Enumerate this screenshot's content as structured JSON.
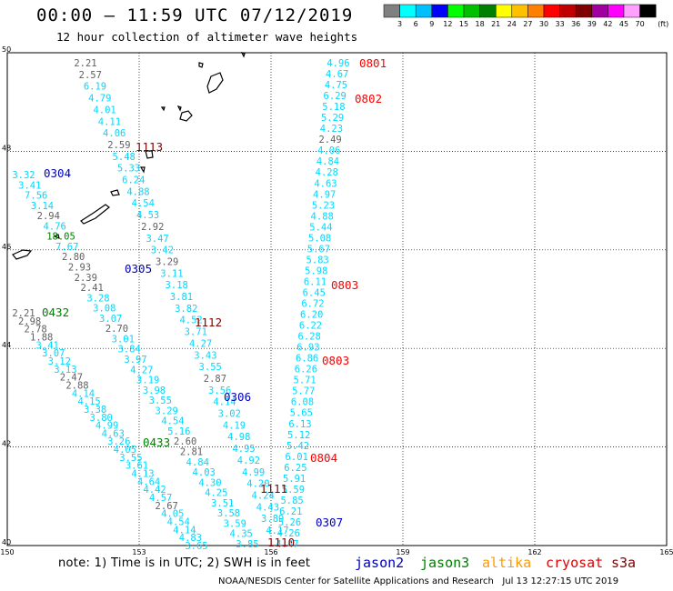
{
  "header": {
    "title": "00:00 – 11:59 UTC 07/12/2019",
    "subtitle": "12 hour collection of altimeter wave heights"
  },
  "legend": {
    "unit": "(ft)",
    "colors": [
      "#808080",
      "#00ffff",
      "#00bfff",
      "#0000ff",
      "#00ff00",
      "#00c000",
      "#008000",
      "#ffff00",
      "#ffc000",
      "#ff8000",
      "#ff0000",
      "#c00000",
      "#800000",
      "#a000a0",
      "#ff00ff",
      "#ffa0ff",
      "#000000"
    ],
    "labels": [
      "3",
      "6",
      "9",
      "12",
      "15",
      "18",
      "21",
      "24",
      "27",
      "30",
      "33",
      "36",
      "39",
      "42",
      "45",
      "70"
    ]
  },
  "axes": {
    "lon_labels": [
      "150",
      "153",
      "156",
      "159",
      "162",
      "165"
    ],
    "lat_labels": [
      "50",
      "48",
      "46",
      "44",
      "42",
      "40"
    ]
  },
  "tracks": [
    {
      "label": "0801",
      "color": "#ff0000"
    },
    {
      "label": "0802",
      "color": "#ff0000"
    },
    {
      "label": "0803",
      "color": "#ff0000"
    },
    {
      "label": "0803",
      "color": "#ff0000"
    },
    {
      "label": "0804",
      "color": "#ff0000"
    },
    {
      "label": "1113",
      "color": "#800000"
    },
    {
      "label": "1112",
      "color": "#800000"
    },
    {
      "label": "1111",
      "color": "#800000"
    },
    {
      "label": "1110",
      "color": "#800000"
    },
    {
      "label": "0304",
      "color": "#0000c0"
    },
    {
      "label": "0305",
      "color": "#0000c0"
    },
    {
      "label": "0306",
      "color": "#0000c0"
    },
    {
      "label": "0307",
      "color": "#0000c0"
    },
    {
      "label": "0432",
      "color": "#008000"
    },
    {
      "label": "0433",
      "color": "#008000"
    }
  ],
  "observations": [
    [
      "4.96",
      "c"
    ],
    [
      "4.67",
      "c"
    ],
    [
      "4.75",
      "c"
    ],
    [
      "6.29",
      "c"
    ],
    [
      "5.18",
      "c"
    ],
    [
      "5.29",
      "c"
    ],
    [
      "4.23",
      "c"
    ],
    [
      "2.49",
      "g"
    ],
    [
      "4.06",
      "c"
    ],
    [
      "4.84",
      "c"
    ],
    [
      "4.28",
      "c"
    ],
    [
      "4.63",
      "c"
    ],
    [
      "4.97",
      "c"
    ],
    [
      "5.23",
      "c"
    ],
    [
      "4.88",
      "c"
    ],
    [
      "5.44",
      "c"
    ],
    [
      "5.08",
      "c"
    ],
    [
      "5.67",
      "c"
    ],
    [
      "5.83",
      "c"
    ],
    [
      "5.98",
      "c"
    ],
    [
      "6.11",
      "c"
    ],
    [
      "6.45",
      "c"
    ],
    [
      "6.72",
      "c"
    ],
    [
      "6.20",
      "c"
    ],
    [
      "6.22",
      "c"
    ],
    [
      "6.28",
      "c"
    ],
    [
      "6.93",
      "c"
    ],
    [
      "6.86",
      "c"
    ],
    [
      "6.26",
      "c"
    ],
    [
      "5.71",
      "c"
    ],
    [
      "5.77",
      "c"
    ],
    [
      "6.08",
      "c"
    ],
    [
      "5.65",
      "c"
    ],
    [
      "6.13",
      "c"
    ],
    [
      "5.12",
      "c"
    ],
    [
      "5.42",
      "c"
    ],
    [
      "6.01",
      "c"
    ],
    [
      "6.25",
      "c"
    ],
    [
      "5.91",
      "c"
    ],
    [
      "5.59",
      "c"
    ],
    [
      "5.85",
      "c"
    ],
    [
      "6.21",
      "c"
    ],
    [
      "5.26",
      "c"
    ],
    [
      "4.26",
      "c"
    ],
    [
      "4.47",
      "c"
    ],
    [
      "2.21",
      "g"
    ],
    [
      "2.57",
      "g"
    ],
    [
      "6.19",
      "c"
    ],
    [
      "4.79",
      "c"
    ],
    [
      "4.01",
      "c"
    ],
    [
      "4.11",
      "c"
    ],
    [
      "4.06",
      "c"
    ],
    [
      "2.59",
      "g"
    ],
    [
      "5.48",
      "c"
    ],
    [
      "5.33",
      "c"
    ],
    [
      "6.24",
      "c"
    ],
    [
      "4.88",
      "c"
    ],
    [
      "4.54",
      "c"
    ],
    [
      "4.53",
      "c"
    ],
    [
      "2.92",
      "g"
    ],
    [
      "3.47",
      "c"
    ],
    [
      "3.42",
      "c"
    ],
    [
      "3.29",
      "g"
    ],
    [
      "3.11",
      "c"
    ],
    [
      "3.18",
      "c"
    ],
    [
      "3.81",
      "c"
    ],
    [
      "3.82",
      "c"
    ],
    [
      "4.52",
      "c"
    ],
    [
      "3.71",
      "c"
    ],
    [
      "4.27",
      "c"
    ],
    [
      "3.43",
      "c"
    ],
    [
      "3.55",
      "c"
    ],
    [
      "2.87",
      "g"
    ],
    [
      "3.56",
      "c"
    ],
    [
      "4.14",
      "c"
    ],
    [
      "3.02",
      "c"
    ],
    [
      "4.19",
      "c"
    ],
    [
      "4.98",
      "c"
    ],
    [
      "4.95",
      "c"
    ],
    [
      "4.92",
      "c"
    ],
    [
      "4.99",
      "c"
    ],
    [
      "4.20",
      "c"
    ],
    [
      "4.24",
      "c"
    ],
    [
      "4.43",
      "c"
    ],
    [
      "3.89",
      "c"
    ],
    [
      "4.17",
      "c"
    ],
    [
      "3.32",
      "c"
    ],
    [
      "3.41",
      "c"
    ],
    [
      "7.56",
      "c"
    ],
    [
      "3.14",
      "c"
    ],
    [
      "2.94",
      "g"
    ],
    [
      "4.76",
      "c"
    ],
    [
      "18.05",
      "dg"
    ],
    [
      "7.67",
      "c"
    ],
    [
      "2.80",
      "g"
    ],
    [
      "2.93",
      "g"
    ],
    [
      "2.39",
      "g"
    ],
    [
      "2.41",
      "g"
    ],
    [
      "3.28",
      "c"
    ],
    [
      "3.08",
      "c"
    ],
    [
      "3.07",
      "c"
    ],
    [
      "2.70",
      "g"
    ],
    [
      "3.01",
      "c"
    ],
    [
      "3.84",
      "c"
    ],
    [
      "3.97",
      "c"
    ],
    [
      "4.27",
      "c"
    ],
    [
      "3.19",
      "c"
    ],
    [
      "3.98",
      "c"
    ],
    [
      "3.55",
      "c"
    ],
    [
      "3.29",
      "c"
    ],
    [
      "4.54",
      "c"
    ],
    [
      "5.16",
      "c"
    ],
    [
      "2.60",
      "g"
    ],
    [
      "2.81",
      "g"
    ],
    [
      "4.84",
      "c"
    ],
    [
      "4.03",
      "c"
    ],
    [
      "4.30",
      "c"
    ],
    [
      "4.25",
      "c"
    ],
    [
      "3.51",
      "c"
    ],
    [
      "3.58",
      "c"
    ],
    [
      "3.59",
      "c"
    ],
    [
      "4.35",
      "c"
    ],
    [
      "3.85",
      "c"
    ],
    [
      "2.21",
      "g"
    ],
    [
      "2.98",
      "g"
    ],
    [
      "2.78",
      "g"
    ],
    [
      "1.88",
      "g"
    ],
    [
      "3.41",
      "c"
    ],
    [
      "3.07",
      "c"
    ],
    [
      "3.12",
      "c"
    ],
    [
      "3.13",
      "c"
    ],
    [
      "2.47",
      "g"
    ],
    [
      "2.88",
      "g"
    ],
    [
      "4.14",
      "c"
    ],
    [
      "4.15",
      "c"
    ],
    [
      "3.38",
      "c"
    ],
    [
      "3.80",
      "c"
    ],
    [
      "4.99",
      "c"
    ],
    [
      "4.63",
      "c"
    ],
    [
      "3.26",
      "c"
    ],
    [
      "4.05",
      "c"
    ],
    [
      "3.55",
      "c"
    ],
    [
      "3.61",
      "c"
    ],
    [
      "4.13",
      "c"
    ],
    [
      "4.64",
      "c"
    ],
    [
      "4.42",
      "c"
    ],
    [
      "4.57",
      "c"
    ],
    [
      "2.67",
      "g"
    ],
    [
      "4.05",
      "c"
    ],
    [
      "4.54",
      "c"
    ],
    [
      "4.14",
      "c"
    ],
    [
      "4.83",
      "c"
    ],
    [
      "3.65",
      "c"
    ]
  ],
  "satellites": [
    {
      "name": "jason2",
      "color": "#0000c0"
    },
    {
      "name": "jason3",
      "color": "#008000"
    },
    {
      "name": "altika",
      "color": "#ff9900"
    },
    {
      "name": "cryosat",
      "color": "#e00000"
    },
    {
      "name": "s3a",
      "color": "#800000"
    }
  ],
  "note": "note: 1) Time is in UTC; 2) SWH is in feet",
  "footer": "NOAA/NESDIS Center for Satellite Applications and Research   Jul 13 12:27:15 UTC 2019"
}
